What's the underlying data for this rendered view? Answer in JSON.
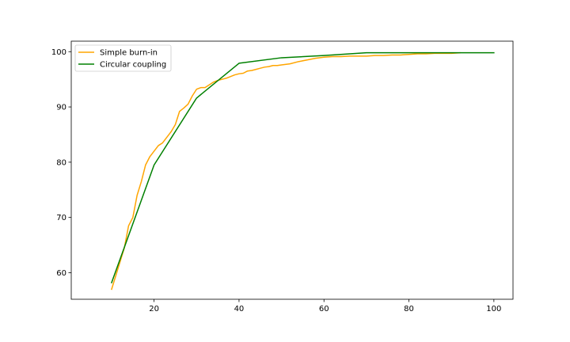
{
  "chart_data": {
    "type": "line",
    "title": "",
    "xlabel": "",
    "ylabel": "",
    "xlim": [
      0.5,
      104.5
    ],
    "ylim": [
      55.2,
      101.9
    ],
    "xticks": [
      20,
      40,
      60,
      80,
      100
    ],
    "yticks": [
      60,
      70,
      80,
      90,
      100
    ],
    "grid": false,
    "legend": "top-left",
    "series": [
      {
        "name": "Simple burn-in",
        "color": "#ffa500",
        "x": [
          10,
          11,
          12,
          13,
          14,
          15,
          16,
          17,
          18,
          19,
          20,
          21,
          22,
          23,
          24,
          25,
          26,
          27,
          28,
          29,
          30,
          31,
          32,
          33,
          34,
          35,
          36,
          37,
          38,
          39,
          40,
          41,
          42,
          43,
          44,
          45,
          46,
          47,
          48,
          49,
          50,
          52,
          54,
          56,
          58,
          60,
          62,
          64,
          66,
          68,
          70,
          72,
          74,
          76,
          78,
          80,
          82,
          84,
          86,
          88,
          90,
          92
        ],
        "y": [
          57.0,
          59.5,
          62.0,
          64.5,
          68.5,
          70.0,
          74.0,
          76.5,
          79.5,
          81.0,
          82.0,
          83.0,
          83.5,
          84.5,
          85.5,
          86.8,
          89.2,
          89.8,
          90.5,
          92.0,
          93.2,
          93.5,
          93.5,
          94.0,
          94.5,
          94.8,
          95.0,
          95.2,
          95.5,
          95.8,
          96.0,
          96.1,
          96.5,
          96.6,
          96.8,
          97.0,
          97.2,
          97.3,
          97.5,
          97.5,
          97.6,
          97.8,
          98.2,
          98.5,
          98.8,
          99.0,
          99.1,
          99.1,
          99.2,
          99.2,
          99.2,
          99.3,
          99.3,
          99.4,
          99.4,
          99.5,
          99.6,
          99.6,
          99.7,
          99.7,
          99.7,
          99.8
        ]
      },
      {
        "name": "Circular coupling",
        "color": "#008000",
        "x": [
          10,
          20,
          30,
          40,
          50,
          60,
          70,
          80,
          90,
          100
        ],
        "y": [
          58.2,
          79.5,
          91.6,
          97.9,
          98.9,
          99.3,
          99.8,
          99.8,
          99.8,
          99.8
        ]
      }
    ]
  }
}
